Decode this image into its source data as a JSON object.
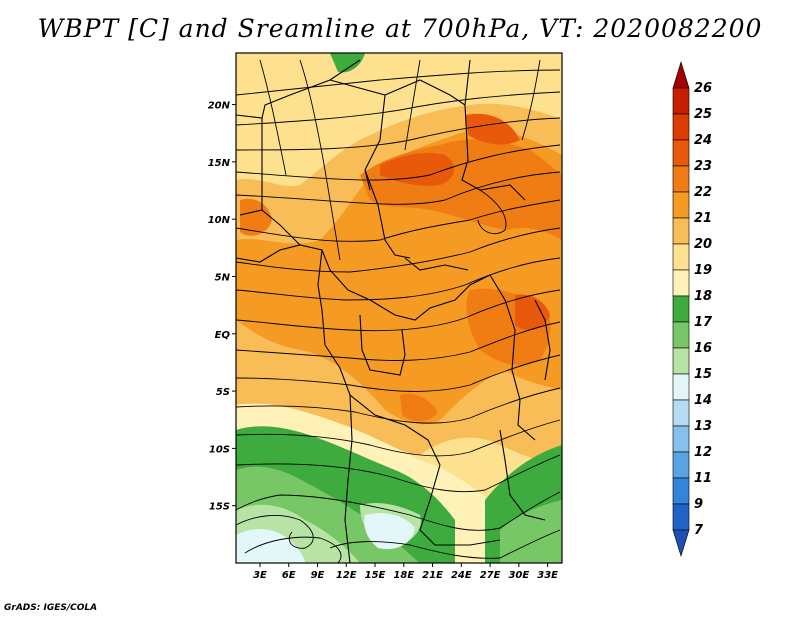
{
  "title": "WBPT [C] and Sreamline at 700hPa, VT: 2020082200",
  "footer": "GrADS: IGES/COLA",
  "chart_data": {
    "type": "heatmap",
    "variable": "WBPT [C]",
    "overlay": "streamlines",
    "level": "700hPa",
    "valid_time": "2020082200",
    "xticks": [
      "3E",
      "6E",
      "9E",
      "12E",
      "15E",
      "18E",
      "21E",
      "24E",
      "27E",
      "30E",
      "33E"
    ],
    "yticks": [
      "20N",
      "15N",
      "10N",
      "5N",
      "EQ",
      "5S",
      "10S",
      "15S"
    ],
    "xlim": [
      0.5,
      34.5
    ],
    "ylim": [
      -20,
      24.5
    ],
    "colorbar": {
      "labels": [
        "26",
        "25",
        "24",
        "23",
        "22",
        "21",
        "20",
        "19",
        "18",
        "17",
        "16",
        "15",
        "14",
        "13",
        "12",
        "11",
        "9",
        "7"
      ],
      "colors": [
        "#a50000",
        "#c81e00",
        "#dc3c00",
        "#e8590c",
        "#f07d14",
        "#f59a23",
        "#f8bd57",
        "#fde18f",
        "#fff2b8",
        "#3dab3d",
        "#78c766",
        "#b7e4a4",
        "#e3f6f8",
        "#b5dcf2",
        "#85c1ec",
        "#57a3e3",
        "#3385dc",
        "#1f63c9",
        "#1e4fb4"
      ]
    }
  }
}
